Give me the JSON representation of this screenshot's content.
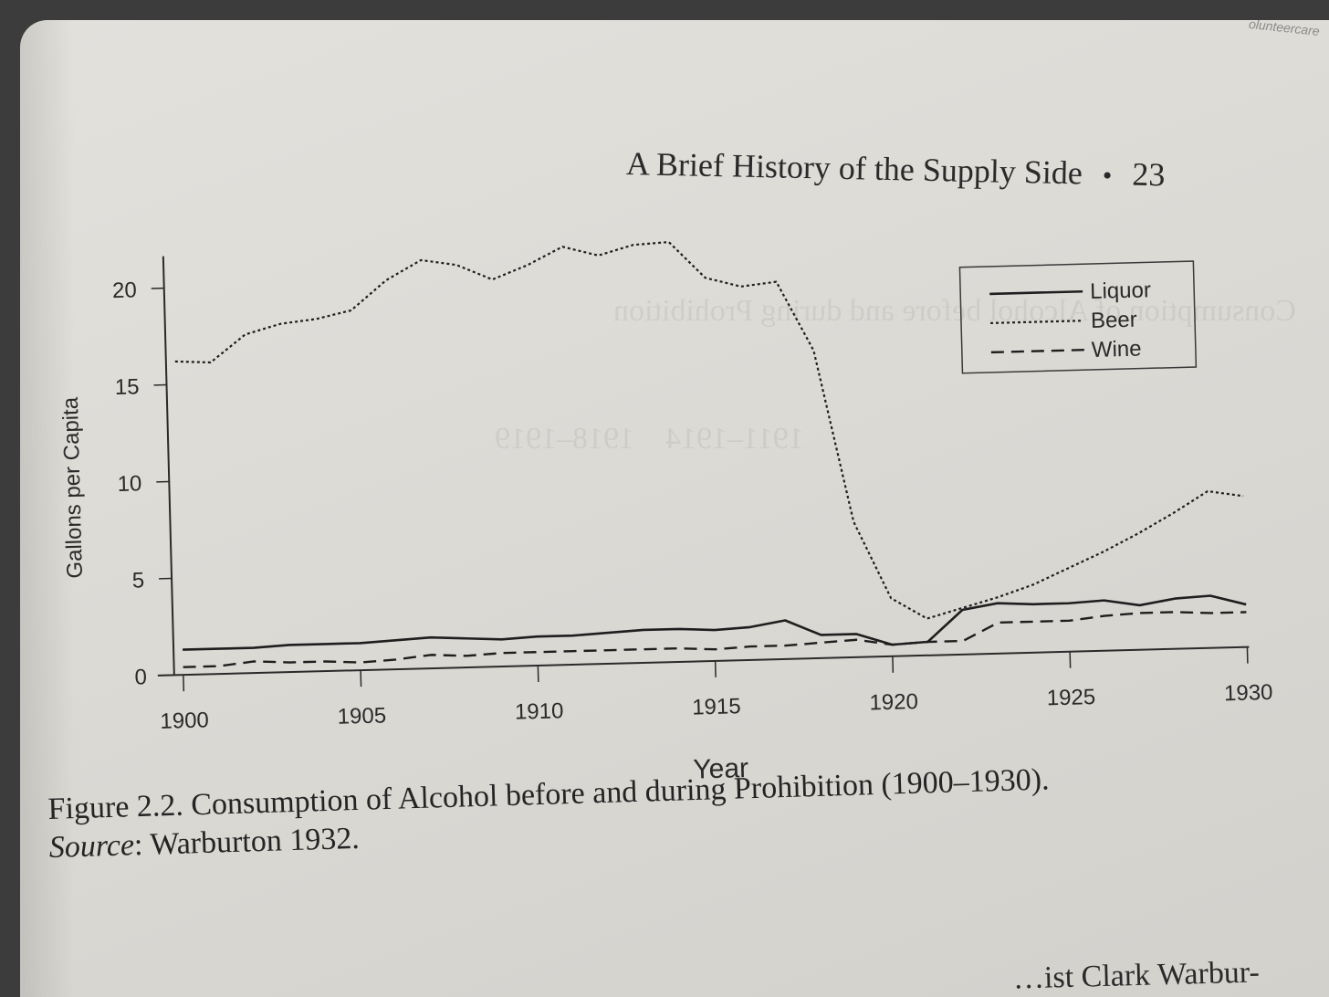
{
  "header": {
    "running_title": "A Brief History of the Supply Side",
    "separator": "•",
    "page_number": "23"
  },
  "corner_tag": "olunteercare",
  "caption": {
    "figure": "Figure 2.2.  Consumption of Alcohol before and during Prohibition (1900–1930).",
    "source_label": "Source",
    "source_text": ": Warburton 1932."
  },
  "next_text": "…ist Clark Warbur-",
  "chart_data": {
    "type": "line",
    "title": "",
    "xlabel": "Year",
    "ylabel": "Gallons per Capita",
    "xlim": [
      1900,
      1930
    ],
    "ylim": [
      0,
      21
    ],
    "xticks": [
      1900,
      1905,
      1910,
      1915,
      1920,
      1925,
      1930
    ],
    "yticks": [
      0,
      5,
      10,
      15,
      20
    ],
    "legend_position": "top-right",
    "x": [
      1900,
      1901,
      1902,
      1903,
      1904,
      1905,
      1906,
      1907,
      1908,
      1909,
      1910,
      1911,
      1912,
      1913,
      1914,
      1915,
      1916,
      1917,
      1918,
      1919,
      1920,
      1921,
      1922,
      1923,
      1924,
      1925,
      1926,
      1927,
      1928,
      1929,
      1930
    ],
    "series": [
      {
        "name": "Liquor",
        "style": "solid",
        "values": [
          1.3,
          1.3,
          1.3,
          1.4,
          1.4,
          1.4,
          1.5,
          1.6,
          1.5,
          1.4,
          1.5,
          1.5,
          1.6,
          1.7,
          1.7,
          1.6,
          1.7,
          2.0,
          1.2,
          1.2,
          0.6,
          0.7,
          2.3,
          2.6,
          2.5,
          2.5,
          2.6,
          2.3,
          2.6,
          2.7,
          2.2
        ]
      },
      {
        "name": "Beer",
        "style": "dotted",
        "values": [
          16.2,
          16.1,
          17.5,
          18.0,
          18.2,
          18.6,
          20.1,
          21.1,
          20.8,
          20.0,
          20.7,
          21.6,
          21.1,
          21.6,
          21.7,
          19.8,
          19.3,
          19.5,
          15.9,
          7.0,
          3.0,
          1.9,
          2.4,
          2.9,
          3.5,
          4.3,
          5.1,
          6.0,
          7.0,
          8.1,
          7.8
        ]
      },
      {
        "name": "Wine",
        "style": "dashed",
        "values": [
          0.4,
          0.4,
          0.6,
          0.5,
          0.5,
          0.4,
          0.5,
          0.7,
          0.6,
          0.7,
          0.7,
          0.7,
          0.7,
          0.7,
          0.7,
          0.6,
          0.7,
          0.7,
          0.8,
          0.9,
          0.6,
          0.7,
          0.7,
          1.6,
          1.6,
          1.6,
          1.8,
          1.9,
          1.9,
          1.8,
          1.8
        ]
      }
    ]
  }
}
